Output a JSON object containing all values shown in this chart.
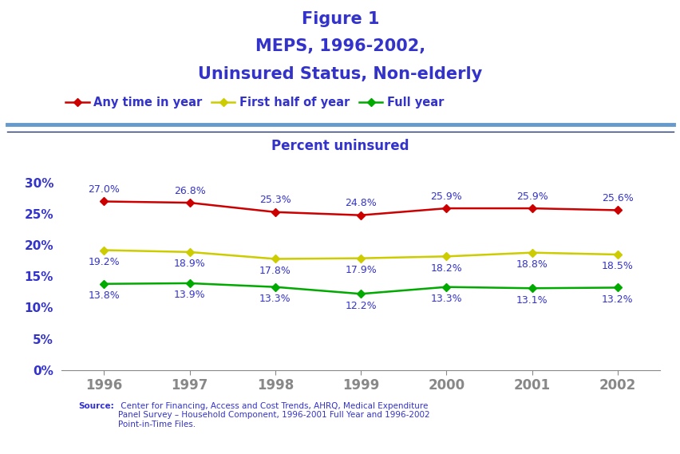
{
  "title_line1": "Figure 1",
  "title_line2": "MEPS, 1996-2002,",
  "title_line3": "Uninsured Status, Non-elderly",
  "title_color": "#3333CC",
  "title_fontsize": 15,
  "ylabel": "Percent uninsured",
  "ylabel_color": "#3333CC",
  "ylabel_fontsize": 12,
  "years": [
    1996,
    1997,
    1998,
    1999,
    2000,
    2001,
    2002
  ],
  "series": [
    {
      "label": "Any time in year",
      "values": [
        27.0,
        26.8,
        25.3,
        24.8,
        25.9,
        25.9,
        25.6
      ],
      "color": "#CC0000",
      "marker": "D",
      "markersize": 5,
      "linewidth": 1.8
    },
    {
      "label": "First half of year",
      "values": [
        19.2,
        18.9,
        17.8,
        17.9,
        18.2,
        18.8,
        18.5
      ],
      "color": "#CCCC00",
      "marker": "D",
      "markersize": 5,
      "linewidth": 1.8
    },
    {
      "label": "Full year",
      "values": [
        13.8,
        13.9,
        13.3,
        12.2,
        13.3,
        13.1,
        13.2
      ],
      "color": "#00AA00",
      "marker": "D",
      "markersize": 5,
      "linewidth": 1.8
    }
  ],
  "axis_label_color": "#3333CC",
  "tick_label_fontsize": 11,
  "data_label_fontsize": 9,
  "ylim": [
    0,
    32
  ],
  "yticks": [
    0,
    5,
    10,
    15,
    20,
    25,
    30
  ],
  "ytick_labels": [
    "0%",
    "5%",
    "10%",
    "15%",
    "20%",
    "25%",
    "30%"
  ],
  "background_color": "#FFFFFF",
  "sep_color1": "#6699CC",
  "sep_color2": "#99BBDD",
  "source_bold": "Source:",
  "source_rest": " Center for Financing, Access and Cost Trends, AHRQ, Medical Expenditure\nPanel Survey – Household Component, 1996-2001 Full Year and 1996-2002\nPoint-in-Time Files.",
  "source_color": "#3333CC",
  "source_fontsize": 7.5
}
